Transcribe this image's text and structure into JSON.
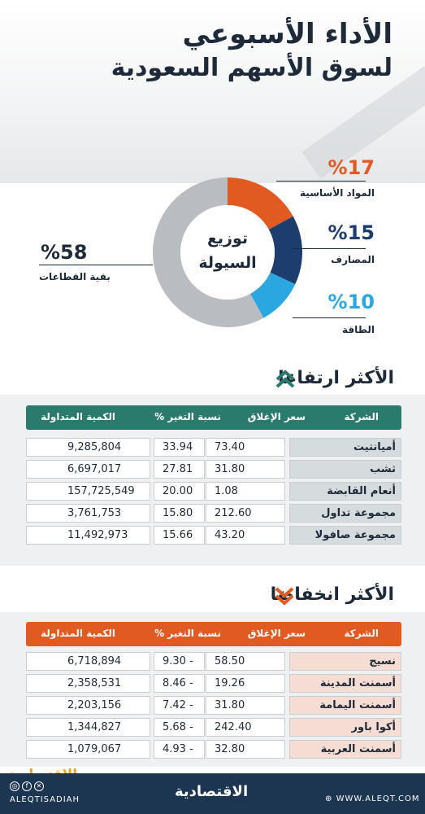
{
  "header": {
    "title_line1": "الأداء الأسبوعي",
    "title_line2": "لسوق الأسهم السعودية"
  },
  "liquidity": {
    "center_line1": "توزيع",
    "center_line2": "السيولة",
    "segments": [
      {
        "label": "المواد الأساسية",
        "pct_text": "%17",
        "value": 17,
        "color": "#e05a22"
      },
      {
        "label": "المصارف",
        "pct_text": "%15",
        "value": 15,
        "color": "#1c3d6e"
      },
      {
        "label": "الطاقة",
        "pct_text": "%10",
        "value": 10,
        "color": "#2aa7e0"
      },
      {
        "label": "بقية القطاعات",
        "pct_text": "%58",
        "value": 58,
        "color": "#b9bcc0"
      }
    ]
  },
  "gainers": {
    "title": "الأكثر ارتفاعا",
    "headers": {
      "company": "الشركة",
      "close": "سعر الإغلاق",
      "change": "نسبة التغير %",
      "volume": "الكمية المتداولة"
    },
    "rows": [
      {
        "company": "أميانتيت",
        "close": "73.40",
        "change": "33.94",
        "volume": "9,285,804"
      },
      {
        "company": "ثشب",
        "close": "31.80",
        "change": "27.81",
        "volume": "6,697,017"
      },
      {
        "company": "أنعام القابضة",
        "close": "1.08",
        "change": "20.00",
        "volume": "157,725,549"
      },
      {
        "company": "مجموعة تداول",
        "close": "212.60",
        "change": "15.80",
        "volume": "3,761,753"
      },
      {
        "company": "مجموعة صافولا",
        "close": "43.20",
        "change": "15.66",
        "volume": "11,492,973"
      }
    ]
  },
  "losers": {
    "title": "الأكثر انخفاضا",
    "headers": {
      "company": "الشركة",
      "close": "سعر الإغلاق",
      "change": "نسبة التغير %",
      "volume": "الكمية المتداولة"
    },
    "rows": [
      {
        "company": "نسيج",
        "close": "58.50",
        "change": "9.30 -",
        "volume": "6,718,894"
      },
      {
        "company": "أسمنت المدينة",
        "close": "19.26",
        "change": "8.46 -",
        "volume": "2,358,531"
      },
      {
        "company": "أسمنت اليمامة",
        "close": "31.80",
        "change": "7.42 -",
        "volume": "2,203,156"
      },
      {
        "company": "أكوا باور",
        "close": "242.40",
        "change": "5.68 -",
        "volume": "1,344,827"
      },
      {
        "company": "أسمنت العربية",
        "close": "32.80",
        "change": "4.93 -",
        "volume": "1,079,067"
      }
    ]
  },
  "footer": {
    "logo": "الاقتصادية",
    "watermark": "الاقتصادية",
    "handle": "ALEQTISADIAH",
    "site": "WWW.ALEQT.COM"
  }
}
